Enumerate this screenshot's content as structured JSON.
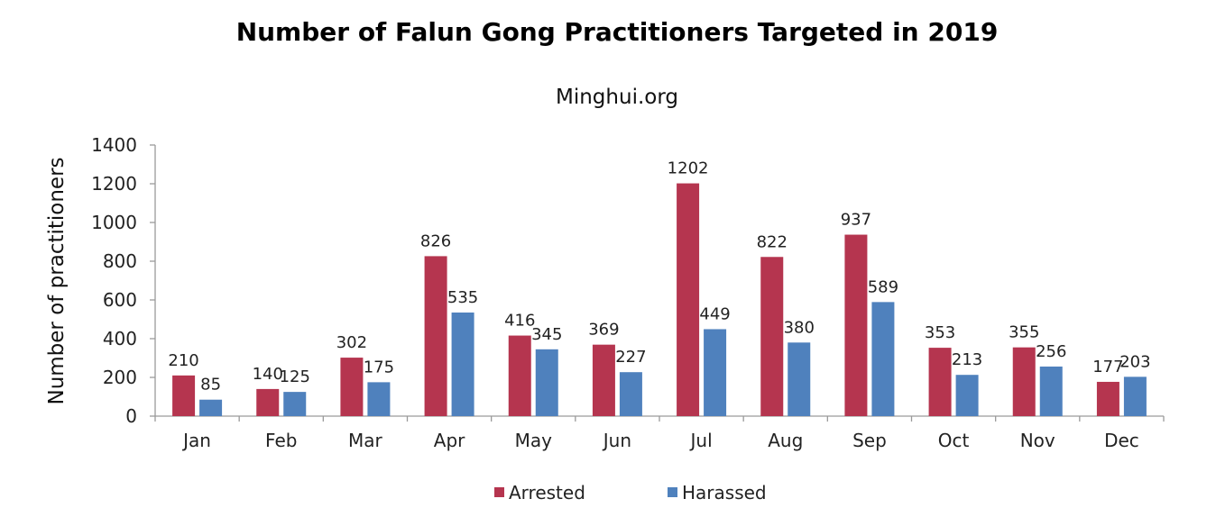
{
  "chart_data": {
    "type": "bar",
    "title": "Number of Falun Gong Practitioners Targeted in 2019",
    "subtitle": "Minghui.org",
    "xlabel": "",
    "ylabel": "Number of practitioners",
    "ylim": [
      0,
      1400
    ],
    "yticks": [
      0,
      200,
      400,
      600,
      800,
      1000,
      1200,
      1400
    ],
    "grid": false,
    "legend_position": "bottom",
    "categories": [
      "Jan",
      "Feb",
      "Mar",
      "Apr",
      "May",
      "Jun",
      "Jul",
      "Aug",
      "Sep",
      "Oct",
      "Nov",
      "Dec"
    ],
    "series": [
      {
        "name": "Arrested",
        "color": "#b5354f",
        "values": [
          210,
          140,
          302,
          826,
          416,
          369,
          1202,
          822,
          937,
          353,
          355,
          177
        ]
      },
      {
        "name": "Harassed",
        "color": "#4f81bd",
        "values": [
          85,
          125,
          175,
          535,
          345,
          227,
          449,
          380,
          589,
          213,
          256,
          203
        ]
      }
    ],
    "data_labels": true
  }
}
